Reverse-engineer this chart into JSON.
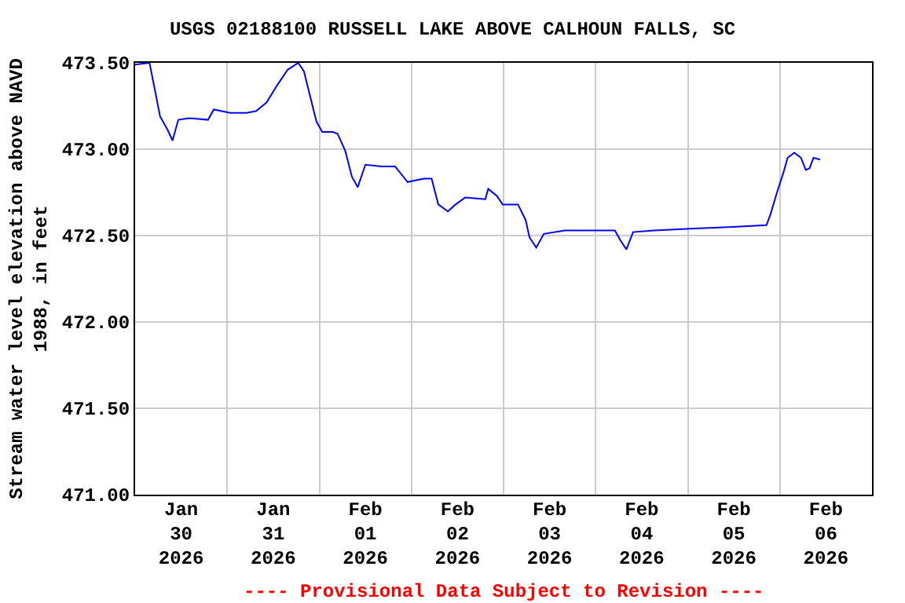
{
  "chart_data": {
    "type": "line",
    "title": "USGS 02188100 RUSSELL LAKE ABOVE CALHOUN FALLS, SC",
    "ylabel": "Stream water level elevation above NAVD\n1988, in feet",
    "annotations": [
      "---- Provisional Data Subject to Revision ----"
    ],
    "xlim": [
      "2026-01-30T00:00",
      "2026-02-07T00:00"
    ],
    "xticks": [
      {
        "value": "2026-01-30T12:00",
        "label": "Jan\n30\n2026"
      },
      {
        "value": "2026-01-31T12:00",
        "label": "Jan\n31\n2026"
      },
      {
        "value": "2026-02-01T12:00",
        "label": "Feb\n01\n2026"
      },
      {
        "value": "2026-02-02T12:00",
        "label": "Feb\n02\n2026"
      },
      {
        "value": "2026-02-03T12:00",
        "label": "Feb\n03\n2026"
      },
      {
        "value": "2026-02-04T12:00",
        "label": "Feb\n04\n2026"
      },
      {
        "value": "2026-02-05T12:00",
        "label": "Feb\n05\n2026"
      },
      {
        "value": "2026-02-06T12:00",
        "label": "Feb\n06\n2026"
      },
      {
        "value": "2026-01-31T00:00",
        "label": null
      },
      {
        "value": "2026-02-01T00:00",
        "label": null
      },
      {
        "value": "2026-02-02T00:00",
        "label": null
      },
      {
        "value": "2026-02-03T00:00",
        "label": null
      },
      {
        "value": "2026-02-04T00:00",
        "label": null
      },
      {
        "value": "2026-02-05T00:00",
        "label": null
      },
      {
        "value": "2026-02-06T00:00",
        "label": null
      }
    ],
    "ylim": [
      471.0,
      473.5
    ],
    "yticks": [
      {
        "value": 471.0,
        "label": "471.00"
      },
      {
        "value": 471.5,
        "label": "471.50"
      },
      {
        "value": 472.0,
        "label": "472.00"
      },
      {
        "value": 472.5,
        "label": "472.50"
      },
      {
        "value": 473.0,
        "label": "473.00"
      },
      {
        "value": 473.5,
        "label": "473.50"
      }
    ],
    "grid": true,
    "marker": "none",
    "line_style": "solid",
    "series": [
      {
        "color": "#0000ff",
        "x": [
          "2026-01-30T00:00",
          "2026-01-30T03:45",
          "2026-01-30T05:00",
          "2026-01-30T06:30",
          "2026-01-30T08:30",
          "2026-01-30T09:45",
          "2026-01-30T11:15",
          "2026-01-30T14:00",
          "2026-01-30T19:00",
          "2026-01-30T20:30",
          "2026-01-31T00:45",
          "2026-01-31T05:00",
          "2026-01-31T07:30",
          "2026-01-31T10:15",
          "2026-01-31T13:00",
          "2026-01-31T15:45",
          "2026-01-31T18:30",
          "2026-01-31T20:00",
          "2026-01-31T22:00",
          "2026-01-31T23:15",
          "2026-02-01T00:45",
          "2026-02-01T03:30",
          "2026-02-01T04:45",
          "2026-02-01T06:45",
          "2026-02-01T08:30",
          "2026-02-01T10:00",
          "2026-02-01T12:00",
          "2026-02-01T16:15",
          "2026-02-01T19:45",
          "2026-02-01T23:00",
          "2026-02-02T03:15",
          "2026-02-02T05:15",
          "2026-02-02T07:00",
          "2026-02-02T09:30",
          "2026-02-02T11:30",
          "2026-02-02T14:00",
          "2026-02-02T19:15",
          "2026-02-02T20:00",
          "2026-02-02T22:15",
          "2026-02-02T23:45",
          "2026-02-03T03:45",
          "2026-02-03T05:45",
          "2026-02-03T06:45",
          "2026-02-03T08:30",
          "2026-02-03T10:30",
          "2026-02-03T16:00",
          "2026-02-03T22:45",
          "2026-02-04T05:00",
          "2026-02-04T06:30",
          "2026-02-04T08:00",
          "2026-02-04T09:45",
          "2026-02-04T15:15",
          "2026-02-05T00:45",
          "2026-02-05T11:45",
          "2026-02-05T20:30",
          "2026-02-05T21:30",
          "2026-02-05T23:15",
          "2026-02-06T01:00",
          "2026-02-06T02:00",
          "2026-02-06T03:45",
          "2026-02-06T05:30",
          "2026-02-06T06:45",
          "2026-02-06T07:45",
          "2026-02-06T08:45",
          "2026-02-06T10:30"
        ],
        "values": [
          473.49,
          473.5,
          473.36,
          473.19,
          473.11,
          473.05,
          473.17,
          473.18,
          473.17,
          473.23,
          473.21,
          473.21,
          473.22,
          473.27,
          473.37,
          473.46,
          473.5,
          473.45,
          473.27,
          473.16,
          473.1,
          473.1,
          473.09,
          472.99,
          472.84,
          472.78,
          472.91,
          472.9,
          472.9,
          472.81,
          472.83,
          472.83,
          472.68,
          472.64,
          472.68,
          472.72,
          472.71,
          472.77,
          472.73,
          472.68,
          472.68,
          472.59,
          472.49,
          472.43,
          472.51,
          472.53,
          472.53,
          472.53,
          472.47,
          472.42,
          472.52,
          472.53,
          472.54,
          472.55,
          472.56,
          472.62,
          472.75,
          472.87,
          472.95,
          472.98,
          472.95,
          472.88,
          472.89,
          472.95,
          472.94
        ]
      }
    ]
  }
}
